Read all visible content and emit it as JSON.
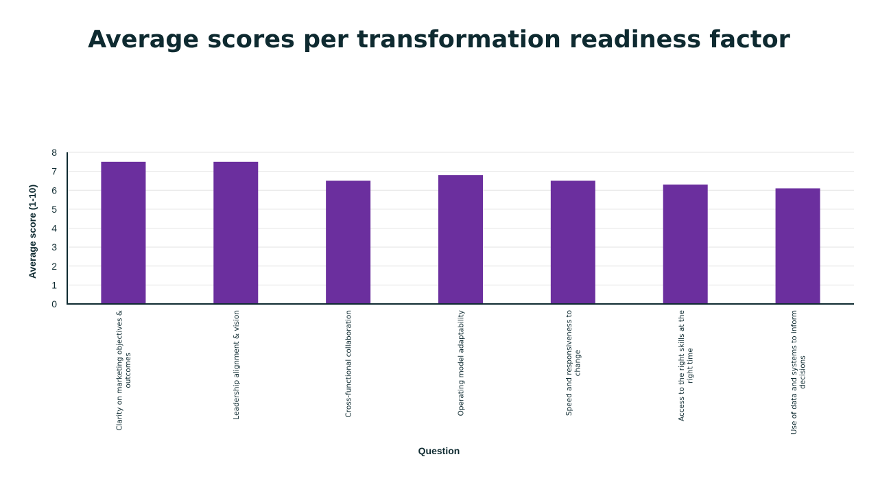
{
  "chart_data": {
    "type": "bar",
    "title": "Average scores per transformation readiness factor",
    "xlabel": "Question",
    "ylabel": "Average score (1-10)",
    "ylim": [
      0,
      8
    ],
    "yticks": [
      "0",
      "1",
      "2",
      "3",
      "4",
      "5",
      "6",
      "7",
      "8"
    ],
    "grid": true,
    "legend": "none",
    "categories": [
      [
        "Clarity on marketing objectives &",
        "outcomes"
      ],
      [
        "Leadership alignment & vision"
      ],
      [
        "Cross-functional collaboration"
      ],
      [
        "Operating model adaptability"
      ],
      [
        "Speed and responsiveness to",
        "change"
      ],
      [
        "Access to the right skills at the",
        "right time"
      ],
      [
        "Use of data and systems to inform",
        "decisions"
      ]
    ],
    "values": [
      7.5,
      7.5,
      6.5,
      6.8,
      6.5,
      6.3,
      6.1
    ],
    "colors": {
      "bar": "#6b2f9e",
      "axis": "#0e2a30",
      "grid": "#e3e3e3",
      "text": "#0e2a30"
    }
  }
}
